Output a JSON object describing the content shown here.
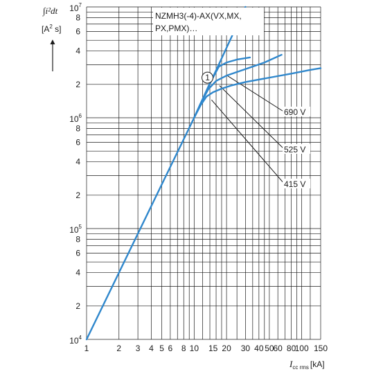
{
  "chart_data": {
    "type": "line",
    "scale": {
      "x": "log",
      "y": "log"
    },
    "grid": true,
    "xlim": [
      1,
      150
    ],
    "ylim": [
      10000,
      10000000
    ],
    "x_ticks": [
      {
        "value": 1,
        "label": "1"
      },
      {
        "value": 2,
        "label": "2"
      },
      {
        "value": 3,
        "label": "3"
      },
      {
        "value": 4,
        "label": "4"
      },
      {
        "value": 5,
        "label": "5"
      },
      {
        "value": 6,
        "label": "6"
      },
      {
        "value": 8,
        "label": "8"
      },
      {
        "value": 10,
        "label": "10"
      },
      {
        "value": 15,
        "label": "15"
      },
      {
        "value": 20,
        "label": "20"
      },
      {
        "value": 30,
        "label": "30"
      },
      {
        "value": 40,
        "label": "40"
      },
      {
        "value": 50,
        "label": "50"
      },
      {
        "value": 60,
        "label": "60"
      },
      {
        "value": 80,
        "label": "80"
      },
      {
        "value": 100,
        "label": "100"
      },
      {
        "value": 150,
        "label": "150"
      }
    ],
    "y_ticks": [
      {
        "value": 10000,
        "base": "10",
        "exp": "4"
      },
      {
        "value": 20000,
        "label": "2"
      },
      {
        "value": 40000,
        "label": "4"
      },
      {
        "value": 60000,
        "label": "6"
      },
      {
        "value": 80000,
        "label": "8"
      },
      {
        "value": 100000,
        "base": "10",
        "exp": "5"
      },
      {
        "value": 200000,
        "label": "2"
      },
      {
        "value": 400000,
        "label": "4"
      },
      {
        "value": 600000,
        "label": "6"
      },
      {
        "value": 800000,
        "label": "8"
      },
      {
        "value": 1000000,
        "base": "10",
        "exp": "6"
      },
      {
        "value": 2000000,
        "label": "2"
      },
      {
        "value": 4000000,
        "label": "4"
      },
      {
        "value": 6000000,
        "label": "6"
      },
      {
        "value": 8000000,
        "label": "8"
      },
      {
        "value": 10000000,
        "base": "10",
        "exp": "7"
      }
    ],
    "x_gridlines": [
      1,
      2,
      3,
      4,
      5,
      6,
      7,
      8,
      9,
      10,
      12,
      14,
      16,
      18,
      20,
      25,
      30,
      35,
      40,
      45,
      50,
      60,
      70,
      80,
      90,
      100,
      120,
      150
    ],
    "y_gridlines": [
      10000,
      20000,
      30000,
      40000,
      50000,
      60000,
      70000,
      80000,
      90000,
      100000,
      200000,
      300000,
      400000,
      500000,
      600000,
      700000,
      800000,
      900000,
      1000000,
      2000000,
      3000000,
      4000000,
      5000000,
      6000000,
      7000000,
      8000000,
      9000000,
      10000000
    ],
    "xlabel": {
      "symbol": "I",
      "subscript": "cc rms",
      "unit": "[kA]"
    },
    "ylabel": {
      "symbol": "∫i²dt",
      "unit_base": "[A",
      "unit_exp": "2",
      "unit_tail": " s]",
      "arrow": "▲"
    },
    "annotation": {
      "line1": "NZMH3(-4)-AX(VX,MX,",
      "line2": "PX,PMX)…"
    },
    "marker": {
      "label": "1",
      "x": 13.3,
      "y": 2300000
    },
    "color": "#2f87cc",
    "series": [
      {
        "name": "",
        "x": [
          1,
          10,
          30
        ],
        "y": [
          10000,
          1000000,
          10000000
        ]
      },
      {
        "name": "690 V",
        "x": [
          10,
          11.7,
          14,
          17,
          20,
          25,
          33
        ],
        "y": [
          1000000,
          1400000,
          2050000,
          2900000,
          3150000,
          3350000,
          3500000
        ]
      },
      {
        "name": "525 V",
        "x": [
          10,
          11.5,
          13.5,
          16,
          20,
          30,
          45,
          65
        ],
        "y": [
          1000000,
          1350000,
          1800000,
          2150000,
          2400000,
          2750000,
          3150000,
          3700000
        ]
      },
      {
        "name": "415 V",
        "x": [
          10,
          11.5,
          13,
          15,
          18,
          22,
          30,
          50,
          80,
          120,
          150
        ],
        "y": [
          1000000,
          1300000,
          1550000,
          1700000,
          1830000,
          1950000,
          2100000,
          2300000,
          2500000,
          2700000,
          2800000
        ]
      }
    ],
    "leaders": [
      {
        "series": "690 V",
        "x": 20,
        "y": 2420000
      },
      {
        "series": "525 V",
        "x": 17.2,
        "y": 1950000
      },
      {
        "series": "415 V",
        "x": 14.5,
        "y": 1450000
      }
    ]
  }
}
